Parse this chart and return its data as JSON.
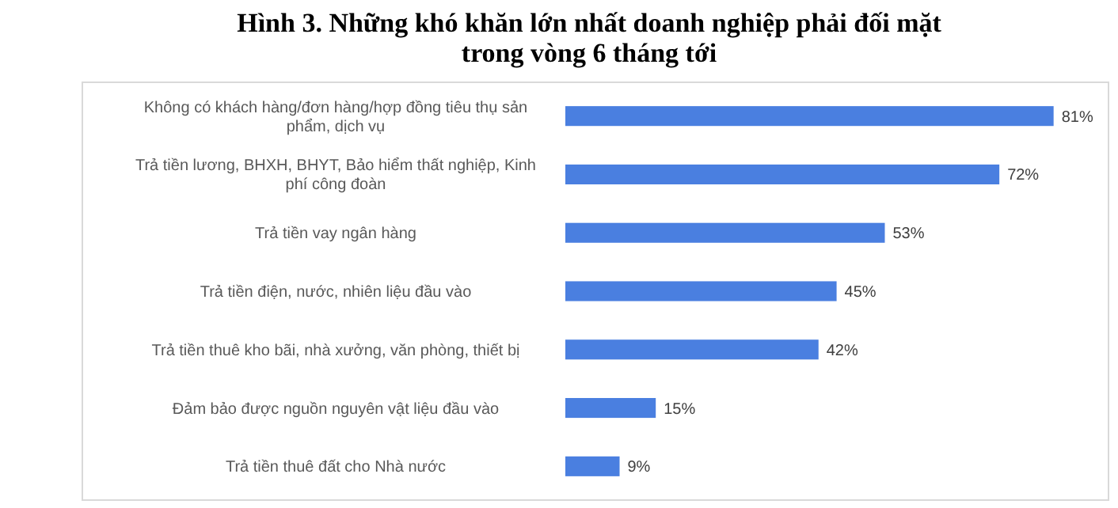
{
  "chart_data": {
    "type": "bar",
    "orientation": "horizontal",
    "title": "Hình 3. Những khó khăn lớn nhất doanh nghiệp phải đối mặt trong vòng 6 tháng tới",
    "categories": [
      "Không có khách hàng/đơn hàng/hợp đồng tiêu thụ sản phẩm, dịch vụ",
      "Trả tiền lương, BHXH, BHYT, Bảo hiểm thất nghiệp, Kinh phí công đoàn",
      "Trả tiền vay ngân hàng",
      "Trả tiền điện, nước, nhiên liệu đầu vào",
      "Trả tiền thuê kho bãi, nhà xưởng, văn phòng, thiết bị",
      "Đảm bảo được nguồn nguyên vật liệu đầu vào",
      "Trả tiền thuê đất cho Nhà nước"
    ],
    "values": [
      81,
      72,
      53,
      45,
      42,
      15,
      9
    ],
    "value_labels": [
      "81%",
      "72%",
      "53%",
      "45%",
      "42%",
      "15%",
      "9%"
    ],
    "color": "#4a7fe0"
  }
}
